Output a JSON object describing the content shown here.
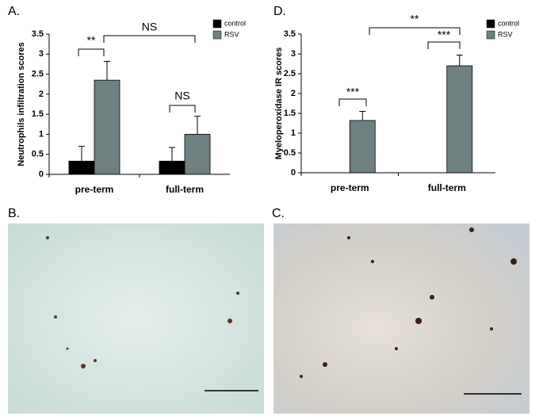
{
  "chart_data": [
    {
      "type": "bar",
      "title": "A.",
      "y_label": "Neutrophils infiltration scores",
      "categories": [
        "pre-term",
        "full-term"
      ],
      "series": [
        {
          "name": "control",
          "color": "#000000",
          "values": [
            0.33,
            0.33
          ],
          "errors": [
            0.37,
            0.34
          ]
        },
        {
          "name": "RSV",
          "color": "#6e8080",
          "values": [
            2.35,
            1.0
          ],
          "errors": [
            0.47,
            0.45
          ]
        }
      ],
      "ylim": [
        0,
        3.5
      ],
      "yticks": [
        0,
        0.5,
        1,
        1.5,
        2,
        2.5,
        3,
        3.5
      ],
      "legend": "top-right",
      "annotations": [
        "**",
        "NS",
        "NS"
      ]
    },
    {
      "type": "bar",
      "title": "D.",
      "y_label": "Myeloperoxidase IR scores",
      "categories": [
        "pre-term",
        "full-term"
      ],
      "series": [
        {
          "name": "control",
          "color": "#000000",
          "values": [
            0,
            0
          ],
          "errors": [
            null,
            null
          ]
        },
        {
          "name": "RSV",
          "color": "#6e8080",
          "values": [
            1.32,
            2.7
          ],
          "errors": [
            0.23,
            0.27
          ]
        }
      ],
      "ylim": [
        0,
        3.5
      ],
      "yticks": [
        0,
        0.5,
        1,
        1.5,
        2,
        2.5,
        3,
        3.5
      ],
      "legend": "top-right",
      "annotations": [
        "***",
        "***",
        "**"
      ]
    }
  ],
  "images": [
    {
      "label": "B."
    },
    {
      "label": "C."
    }
  ]
}
